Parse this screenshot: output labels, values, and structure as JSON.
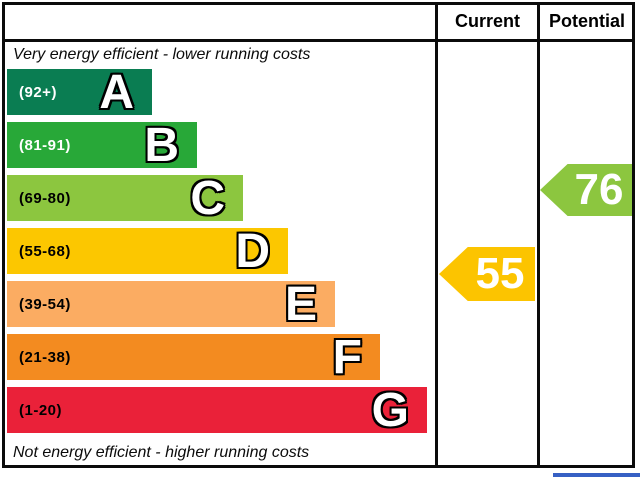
{
  "header": {
    "current": "Current",
    "potential": "Potential"
  },
  "captions": {
    "top": "Very energy efficient - lower running costs",
    "bottom": "Not energy efficient - higher running costs"
  },
  "bands": [
    {
      "letter": "A",
      "range": "(92+)",
      "color": "#0a7d52",
      "range_text_color": "#ffffff"
    },
    {
      "letter": "B",
      "range": "(81-91)",
      "color": "#28a838",
      "range_text_color": "#ffffff"
    },
    {
      "letter": "C",
      "range": "(69-80)",
      "color": "#8cc63f",
      "range_text_color": "#000000"
    },
    {
      "letter": "D",
      "range": "(55-68)",
      "color": "#fcc700",
      "range_text_color": "#000000"
    },
    {
      "letter": "E",
      "range": "(39-54)",
      "color": "#fbac62",
      "range_text_color": "#000000"
    },
    {
      "letter": "F",
      "range": "(21-38)",
      "color": "#f38b20",
      "range_text_color": "#000000"
    },
    {
      "letter": "G",
      "range": "(1-20)",
      "color": "#ea2139",
      "range_text_color": "#000000"
    }
  ],
  "ratings": {
    "current": {
      "value": "55",
      "color": "#fcc400",
      "band": "D"
    },
    "potential": {
      "value": "76",
      "color": "#8cc63f",
      "band": "C"
    }
  },
  "accents": {
    "border_color": "#0b0b0b",
    "bottom_partial_bar_color": "#3660c4"
  },
  "chart_data": {
    "type": "bar",
    "title": "Energy efficiency rating (EPC)",
    "orientation": "horizontal",
    "categories": [
      "A (92+)",
      "B (81-91)",
      "C (69-80)",
      "D (55-68)",
      "E (39-54)",
      "F (21-38)",
      "G (1-20)"
    ],
    "values": [
      145,
      190,
      236,
      281,
      328,
      373,
      420
    ],
    "band_ranges": [
      [
        92,
        100
      ],
      [
        81,
        91
      ],
      [
        69,
        80
      ],
      [
        55,
        68
      ],
      [
        39,
        54
      ],
      [
        21,
        38
      ],
      [
        1,
        20
      ]
    ],
    "band_colors": [
      "#0a7d52",
      "#28a838",
      "#8cc63f",
      "#fcc700",
      "#fbac62",
      "#f38b20",
      "#ea2139"
    ],
    "columns": [
      "Current",
      "Potential"
    ],
    "markers": [
      {
        "name": "Current",
        "value": 55,
        "band": "D",
        "color": "#fcc400"
      },
      {
        "name": "Potential",
        "value": 76,
        "band": "C",
        "color": "#8cc63f"
      }
    ],
    "top_annotation": "Very energy efficient - lower running costs",
    "bottom_annotation": "Not energy efficient - higher running costs",
    "legend": "none",
    "grid": "off"
  }
}
